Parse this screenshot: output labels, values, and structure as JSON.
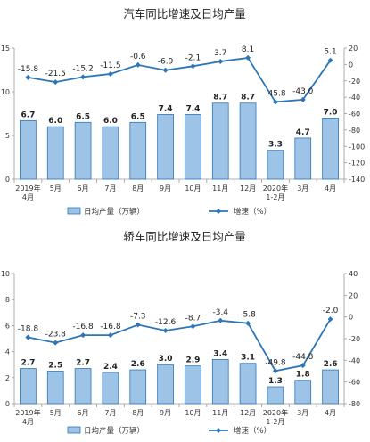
{
  "chart_data": [
    {
      "type": "bar+line",
      "title": "汽车同比增速及日均产量",
      "categories": [
        {
          "lines": [
            "2019年",
            "4月"
          ]
        },
        {
          "lines": [
            "5月"
          ]
        },
        {
          "lines": [
            "6月"
          ]
        },
        {
          "lines": [
            "7月"
          ]
        },
        {
          "lines": [
            "8月"
          ]
        },
        {
          "lines": [
            "9月"
          ]
        },
        {
          "lines": [
            "10月"
          ]
        },
        {
          "lines": [
            "11月"
          ]
        },
        {
          "lines": [
            "12月"
          ]
        },
        {
          "lines": [
            "2020年",
            "1-2月"
          ]
        },
        {
          "lines": [
            "3月"
          ]
        },
        {
          "lines": [
            "4月"
          ]
        }
      ],
      "series": [
        {
          "name": "日均产量（万辆）",
          "kind": "bar",
          "axis": "left",
          "color": "#9dc3e6",
          "edge": "#2e75b6",
          "values": [
            6.7,
            6.0,
            6.5,
            6.0,
            6.5,
            7.4,
            7.4,
            8.7,
            8.7,
            3.3,
            4.7,
            7.0
          ],
          "labels": [
            "6.7",
            "6.0",
            "6.5",
            "6.0",
            "6.5",
            "7.4",
            "7.4",
            "8.7",
            "8.7",
            "3.3",
            "4.7",
            "7.0"
          ]
        },
        {
          "name": "增速（%）",
          "kind": "line",
          "axis": "right",
          "color": "#2e75b6",
          "values": [
            -15.8,
            -21.5,
            -15.2,
            -11.5,
            -0.6,
            -6.9,
            -2.1,
            3.7,
            8.1,
            -45.8,
            -43.0,
            5.1
          ],
          "labels": [
            "-15.8",
            "-21.5",
            "-15.2",
            "-11.5",
            "-0.6",
            "-6.9",
            "-2.1",
            "3.7",
            "8.1",
            "-45.8",
            "-43.0",
            "5.1"
          ]
        }
      ],
      "left_axis": {
        "min": 0,
        "max": 15,
        "ticks": [
          0,
          5,
          10,
          15
        ],
        "tick_labels": [
          "0",
          "5",
          "10",
          "15"
        ]
      },
      "right_axis": {
        "min": -140,
        "max": 20,
        "ticks": [
          20,
          0,
          -20,
          -40,
          -60,
          -80,
          -100,
          -120,
          -140
        ],
        "tick_labels": [
          "20",
          "0",
          "-20",
          "-40",
          "-60",
          "-80",
          "-100",
          "-120",
          "-140"
        ]
      },
      "legend": {
        "position": "bottom",
        "items": [
          "日均产量（万辆）",
          "增速（%）"
        ]
      }
    },
    {
      "type": "bar+line",
      "title": "轿车同比增速及日均产量",
      "categories": [
        {
          "lines": [
            "2019年",
            "4月"
          ]
        },
        {
          "lines": [
            "5月"
          ]
        },
        {
          "lines": [
            "6月"
          ]
        },
        {
          "lines": [
            "7月"
          ]
        },
        {
          "lines": [
            "8月"
          ]
        },
        {
          "lines": [
            "9月"
          ]
        },
        {
          "lines": [
            "10月"
          ]
        },
        {
          "lines": [
            "11月"
          ]
        },
        {
          "lines": [
            "12月"
          ]
        },
        {
          "lines": [
            "2020年",
            "1-2月"
          ]
        },
        {
          "lines": [
            "3月"
          ]
        },
        {
          "lines": [
            "4月"
          ]
        }
      ],
      "series": [
        {
          "name": "日均产量（万辆）",
          "kind": "bar",
          "axis": "left",
          "color": "#9dc3e6",
          "edge": "#2e75b6",
          "values": [
            2.7,
            2.5,
            2.7,
            2.4,
            2.6,
            3.0,
            2.9,
            3.4,
            3.1,
            1.3,
            1.8,
            2.6
          ],
          "labels": [
            "2.7",
            "2.5",
            "2.7",
            "2.4",
            "2.6",
            "3.0",
            "2.9",
            "3.4",
            "3.1",
            "1.3",
            "1.8",
            "2.6"
          ]
        },
        {
          "name": "增速（%）",
          "kind": "line",
          "axis": "right",
          "color": "#2e75b6",
          "values": [
            -18.8,
            -23.8,
            -16.8,
            -16.8,
            -7.3,
            -12.6,
            -8.7,
            -3.4,
            -5.8,
            -49.8,
            -44.8,
            -2.0
          ],
          "labels": [
            "-18.8",
            "-23.8",
            "-16.8",
            "-16.8",
            "-7.3",
            "-12.6",
            "-8.7",
            "-3.4",
            "-5.8",
            "-49.8",
            "-44.8",
            "-2.0"
          ]
        }
      ],
      "left_axis": {
        "min": 0,
        "max": 10,
        "ticks": [
          0,
          2,
          4,
          6,
          8,
          10
        ],
        "tick_labels": [
          "0",
          "2",
          "4",
          "6",
          "8",
          "10"
        ]
      },
      "right_axis": {
        "min": -80,
        "max": 40,
        "ticks": [
          40,
          20,
          0,
          -20,
          -40,
          -60,
          -80
        ],
        "tick_labels": [
          "40",
          "20",
          "0",
          "-20",
          "-40",
          "-60",
          "-80"
        ]
      },
      "legend": {
        "position": "bottom",
        "items": [
          "日均产量（万辆）",
          "增速（%）"
        ]
      }
    }
  ]
}
